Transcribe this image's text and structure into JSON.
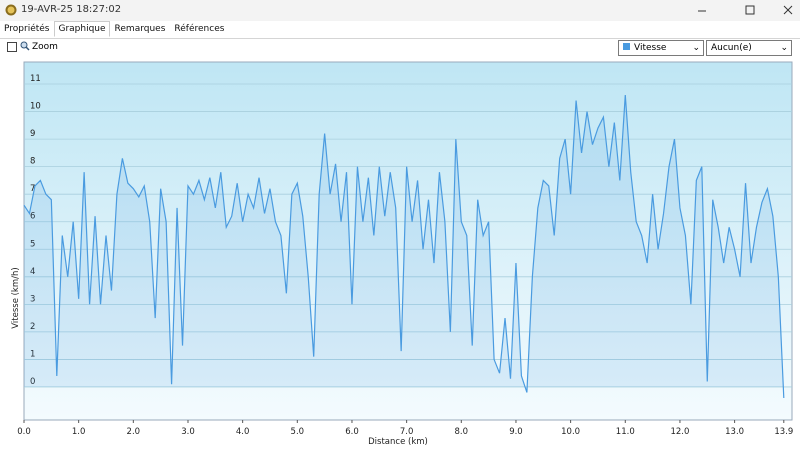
{
  "window": {
    "title": "19-AVR-25 18:27:02"
  },
  "tabs": [
    "Propriétés",
    "Graphique",
    "Remarques",
    "Références"
  ],
  "toolbar": {
    "zoom_label": "Zoom",
    "secondary_select": "Aucun(e)"
  },
  "chart_data": {
    "type": "area",
    "xlabel": "Distance  (km)",
    "ylabel": "Vitesse (km/h)",
    "x": [
      0.0,
      0.1,
      0.2,
      0.3,
      0.4,
      0.5,
      0.6,
      0.7,
      0.8,
      0.9,
      1.0,
      1.1,
      1.2,
      1.3,
      1.4,
      1.5,
      1.6,
      1.7,
      1.8,
      1.9,
      2.0,
      2.1,
      2.2,
      2.3,
      2.4,
      2.5,
      2.6,
      2.7,
      2.8,
      2.9,
      3.0,
      3.1,
      3.2,
      3.3,
      3.4,
      3.5,
      3.6,
      3.7,
      3.8,
      3.9,
      4.0,
      4.1,
      4.2,
      4.3,
      4.4,
      4.5,
      4.6,
      4.7,
      4.8,
      4.9,
      5.0,
      5.1,
      5.2,
      5.3,
      5.4,
      5.5,
      5.6,
      5.7,
      5.8,
      5.9,
      6.0,
      6.1,
      6.2,
      6.3,
      6.4,
      6.5,
      6.6,
      6.7,
      6.8,
      6.9,
      7.0,
      7.1,
      7.2,
      7.3,
      7.4,
      7.5,
      7.6,
      7.7,
      7.8,
      7.9,
      8.0,
      8.1,
      8.2,
      8.3,
      8.4,
      8.5,
      8.6,
      8.7,
      8.8,
      8.9,
      9.0,
      9.1,
      9.2,
      9.3,
      9.4,
      9.5,
      9.6,
      9.7,
      9.8,
      9.9,
      10.0,
      10.1,
      10.2,
      10.3,
      10.4,
      10.5,
      10.6,
      10.7,
      10.8,
      10.9,
      11.0,
      11.1,
      11.2,
      11.3,
      11.4,
      11.5,
      11.6,
      11.7,
      11.8,
      11.9,
      12.0,
      12.1,
      12.2,
      12.3,
      12.4,
      12.5,
      12.6,
      12.7,
      12.8,
      12.9,
      13.0,
      13.1,
      13.2,
      13.3,
      13.4,
      13.5,
      13.6,
      13.7,
      13.8,
      13.9
    ],
    "series": [
      {
        "name": "Vitesse",
        "color": "#4a9be0",
        "values": [
          6.6,
          6.3,
          7.3,
          7.5,
          7.0,
          6.8,
          0.4,
          5.5,
          4.0,
          6.0,
          3.2,
          7.8,
          3.0,
          6.2,
          3.0,
          5.5,
          3.5,
          7.0,
          8.3,
          7.4,
          7.2,
          6.9,
          7.3,
          6.0,
          2.5,
          7.2,
          6.0,
          0.1,
          6.5,
          1.5,
          7.3,
          7.0,
          7.5,
          6.8,
          7.6,
          6.5,
          7.8,
          5.8,
          6.2,
          7.4,
          6.0,
          7.0,
          6.5,
          7.6,
          6.3,
          7.2,
          6.0,
          5.5,
          3.4,
          7.0,
          7.4,
          6.2,
          4.0,
          1.1,
          7.0,
          9.2,
          7.0,
          8.1,
          6.0,
          7.8,
          3.0,
          8.0,
          6.0,
          7.6,
          5.5,
          8.0,
          6.2,
          7.8,
          6.5,
          1.3,
          8.0,
          6.0,
          7.5,
          5.0,
          6.8,
          4.5,
          7.8,
          6.0,
          2.0,
          9.0,
          6.0,
          5.5,
          1.5,
          6.8,
          5.5,
          6.0,
          1.0,
          0.5,
          2.5,
          0.3,
          4.5,
          0.4,
          -0.2,
          4.0,
          6.5,
          7.5,
          7.3,
          5.5,
          8.3,
          9.0,
          7.0,
          10.4,
          8.5,
          10.0,
          8.8,
          9.4,
          9.8,
          8.0,
          9.6,
          7.5,
          10.6,
          7.8,
          6.0,
          5.5,
          4.5,
          7.0,
          5.0,
          6.3,
          8.0,
          9.0,
          6.5,
          5.5,
          3.0,
          7.5,
          8.0,
          0.2,
          6.8,
          5.8,
          4.5,
          5.8,
          5.0,
          4.0,
          7.4,
          4.5,
          5.8,
          6.7,
          7.2,
          6.2,
          4.0,
          -0.4
        ]
      }
    ],
    "xlim": [
      0,
      14.05
    ],
    "ylim": [
      -1.2,
      11.8
    ],
    "xticks": [
      {
        "value": 0,
        "label": "0.0"
      },
      {
        "value": 1,
        "label": "1.0"
      },
      {
        "value": 2,
        "label": "2.0"
      },
      {
        "value": 3,
        "label": "3.0"
      },
      {
        "value": 4,
        "label": "4.0"
      },
      {
        "value": 5,
        "label": "5.0"
      },
      {
        "value": 6,
        "label": "6.0"
      },
      {
        "value": 7,
        "label": "7.0"
      },
      {
        "value": 8,
        "label": "8.0"
      },
      {
        "value": 9,
        "label": "9.0"
      },
      {
        "value": 10,
        "label": "10.0"
      },
      {
        "value": 11,
        "label": "11.0"
      },
      {
        "value": 12,
        "label": "12.0"
      },
      {
        "value": 13,
        "label": "13.0"
      },
      13.9
    ],
    "yticks": [
      0,
      1,
      2,
      3,
      4,
      5,
      6,
      7,
      8,
      9,
      10,
      11
    ],
    "grid": true
  }
}
